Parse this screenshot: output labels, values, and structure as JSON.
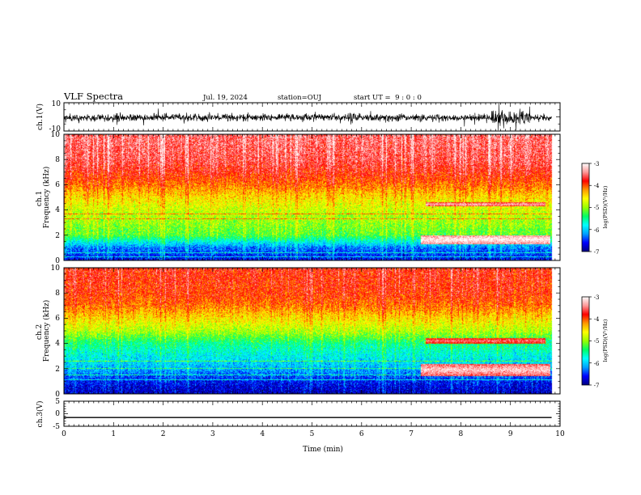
{
  "header": {
    "title": "VLF Spectra",
    "date": "Jul. 19, 2024",
    "station": "station=OUJ",
    "start": "start UT =  9 : 0 : 0"
  },
  "colors": {
    "spectral": [
      "#00007f",
      "#0000ff",
      "#00a0ff",
      "#00ffff",
      "#00ff66",
      "#99ff00",
      "#ffff00",
      "#ff9900",
      "#ff0000",
      "#ff9999",
      "#ffffff"
    ]
  },
  "chart_data": [
    {
      "type": "line",
      "panel": "ch1-waveform",
      "ylabel": "ch.1(V)",
      "ylim": [
        -10,
        10
      ],
      "yticks": [
        "10",
        "-10"
      ],
      "xlim": [
        0,
        10
      ],
      "trace": "noisy waveform around -0.5 V, amplitude about ±3 V, bursts up to ±7 V between 8.6 and 9.4 min, data ends near 9.83 min"
    },
    {
      "type": "heatmap",
      "panel": "ch1-spectrogram",
      "ylabel": "ch.1\nFrequency (kHz)",
      "ylim": [
        0,
        10
      ],
      "yticks": [
        "10",
        "8",
        "6",
        "4",
        "2",
        "0"
      ],
      "xlim": [
        0,
        10
      ],
      "colorbar": {
        "range": [
          -7,
          -3
        ],
        "ticks": [
          "-3",
          "-4",
          "-5",
          "-6",
          "-7"
        ],
        "label": "log(PSD)(V²/Hz)"
      },
      "data_end_min": 9.83,
      "levels_by_frequency_khz": [
        [
          0.2,
          -6.6
        ],
        [
          1.0,
          -6.3
        ],
        [
          2.0,
          -5.2
        ],
        [
          3.0,
          -5.0
        ],
        [
          4.0,
          -4.8
        ],
        [
          5.0,
          -4.5
        ],
        [
          6.0,
          -4.1
        ],
        [
          7.0,
          -3.8
        ],
        [
          8.0,
          -3.6
        ],
        [
          10.0,
          -3.5
        ]
      ],
      "lines_khz": [
        0.3,
        0.6,
        3.3,
        3.7
      ],
      "events": [
        {
          "from_min": 7.2,
          "to_min": 9.8,
          "freq_khz": [
            1.3,
            2.0
          ],
          "level": -3.0
        },
        {
          "from_min": 7.3,
          "to_min": 9.7,
          "freq_khz": [
            4.3,
            4.6
          ],
          "level": -3.3
        }
      ]
    },
    {
      "type": "heatmap",
      "panel": "ch2-spectrogram",
      "ylabel": "ch.2\nFrequency (kHz)",
      "ylim": [
        0,
        10
      ],
      "yticks": [
        "10",
        "8",
        "6",
        "4",
        "2",
        "0"
      ],
      "xlim": [
        0,
        10
      ],
      "colorbar": {
        "range": [
          -7,
          -3
        ],
        "ticks": [
          "-3",
          "-4",
          "-5",
          "-6",
          "-7"
        ],
        "label": "log(PSD)(V²/Hz)"
      },
      "data_end_min": 9.83,
      "levels_by_frequency_khz": [
        [
          0.2,
          -6.8
        ],
        [
          1.0,
          -6.6
        ],
        [
          2.0,
          -6.1
        ],
        [
          3.0,
          -5.8
        ],
        [
          4.0,
          -5.5
        ],
        [
          5.0,
          -4.9
        ],
        [
          6.0,
          -4.5
        ],
        [
          7.0,
          -4.1
        ],
        [
          8.0,
          -3.9
        ],
        [
          10.0,
          -3.8
        ]
      ],
      "lines_khz": [
        1.1,
        1.5,
        2.0,
        2.6
      ],
      "events": [
        {
          "from_min": 7.2,
          "to_min": 9.8,
          "freq_khz": [
            1.4,
            2.4
          ],
          "level": -3.2
        },
        {
          "from_min": 7.3,
          "to_min": 9.7,
          "freq_khz": [
            4.0,
            4.4
          ],
          "level": -3.5
        }
      ]
    },
    {
      "type": "line",
      "panel": "ch3-waveform",
      "ylabel": "ch.3(V)",
      "ylim": [
        -5,
        5
      ],
      "yticks": [
        "5",
        "0",
        "-5"
      ],
      "xlim": [
        0,
        10
      ],
      "xlabel": "Time (min)",
      "xticks": [
        "0",
        "1",
        "2",
        "3",
        "4",
        "5",
        "6",
        "7",
        "8",
        "9",
        "10"
      ],
      "x": [
        0,
        9.83
      ],
      "y": [
        -1.5,
        -1.5
      ]
    }
  ]
}
